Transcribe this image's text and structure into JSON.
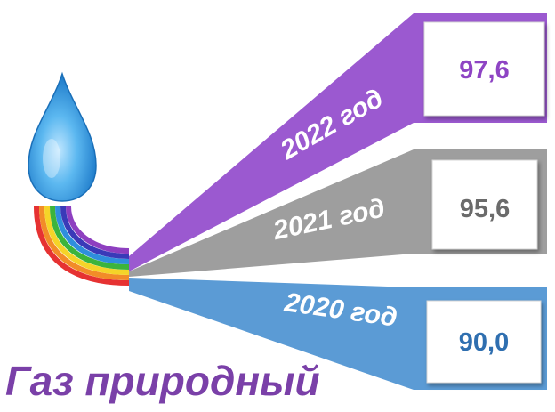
{
  "colors": {
    "purple": "#9b59d0",
    "gray": "#9e9e9e",
    "blue": "#5b9bd5",
    "caption": "#7a40a8",
    "value_purple": "#8e44c4",
    "value_gray": "#6b6b6b",
    "value_blue": "#2f6fb0"
  },
  "title": "Газ природный",
  "chart_data": {
    "type": "bar",
    "title": "Газ природный",
    "categories": [
      "2022 год",
      "2021 год",
      "2020 год"
    ],
    "values": [
      97.6,
      95.6,
      90.0
    ],
    "value_labels": [
      "97,6",
      "95,6",
      "90,0"
    ],
    "series_colors": [
      "#9b59d0",
      "#9e9e9e",
      "#5b9bd5"
    ]
  }
}
